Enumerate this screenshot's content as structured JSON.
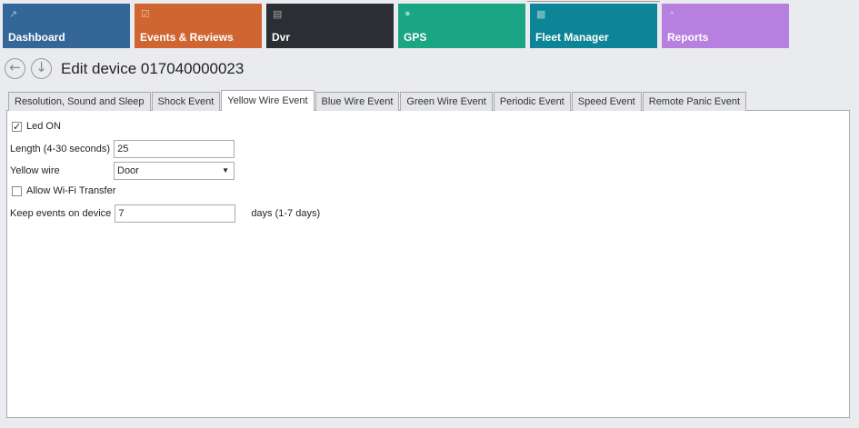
{
  "tiles": [
    {
      "label": "Dashboard",
      "icon": "chart-line-icon",
      "color": "#346699"
    },
    {
      "label": "Events & Reviews",
      "icon": "clipboard-check-icon",
      "color": "#cf6631"
    },
    {
      "label": "Dvr",
      "icon": "dvr-logo-icon",
      "color": "#2b2e33"
    },
    {
      "label": "GPS",
      "icon": "map-pin-icon",
      "color": "#1aa585"
    },
    {
      "label": "Fleet Manager",
      "icon": "cars-icon",
      "color": "#0e8596"
    },
    {
      "label": "Reports",
      "icon": "pie-chart-icon",
      "color": "#b67fe0"
    }
  ],
  "header": {
    "title": "Edit device 017040000023"
  },
  "tabs": [
    "Resolution, Sound and Sleep",
    "Shock Event",
    "Yellow Wire Event",
    "Blue Wire Event",
    "Green Wire Event",
    "Periodic Event",
    "Speed Event",
    "Remote Panic Event"
  ],
  "active_tab": "Yellow Wire Event",
  "form": {
    "led_on": {
      "label": "Led ON",
      "checked": true
    },
    "length": {
      "label": "Length (4-30 seconds)",
      "value": "25"
    },
    "yellow_wire": {
      "label": "Yellow wire",
      "value": "Door"
    },
    "wifi": {
      "label": "Allow Wi-Fi Transfer",
      "checked": false
    },
    "keep": {
      "label": "Keep events on device",
      "value": "7",
      "suffix": "days (1-7 days)"
    }
  }
}
